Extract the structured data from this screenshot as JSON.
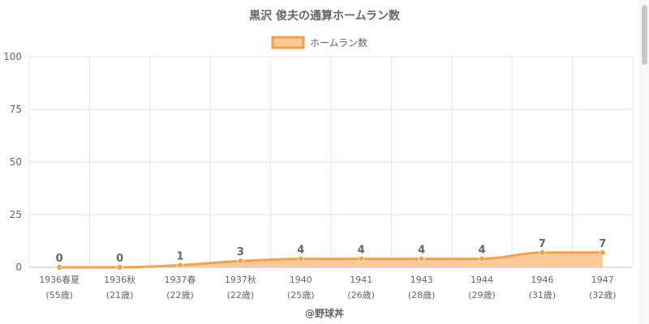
{
  "chart_data": {
    "type": "area",
    "title": "黒沢 俊夫の通算ホームラン数",
    "legend": {
      "position": "top",
      "entries": [
        "ホームラン数"
      ]
    },
    "categories": [
      "1936春夏",
      "1936秋",
      "1937春",
      "1937秋",
      "1940",
      "1941",
      "1943",
      "1944",
      "1946",
      "1947"
    ],
    "category_sublabels": [
      "(55歳)",
      "(21歳)",
      "(22歳)",
      "(22歳)",
      "(25歳)",
      "(26歳)",
      "(28歳)",
      "(29歳)",
      "(31歳)",
      "(32歳)"
    ],
    "series": [
      {
        "name": "ホームラン数",
        "values": [
          0,
          0,
          1,
          3,
          4,
          4,
          4,
          4,
          7,
          7
        ]
      }
    ],
    "ylim": [
      0,
      100
    ],
    "yticks": [
      0,
      25,
      50,
      75,
      100
    ],
    "grid": true,
    "data_labels": true,
    "colors": {
      "line": "#f6a04d",
      "fill": "#fbc792",
      "marker": "#f6a04d"
    },
    "footer": "@野球丼"
  }
}
